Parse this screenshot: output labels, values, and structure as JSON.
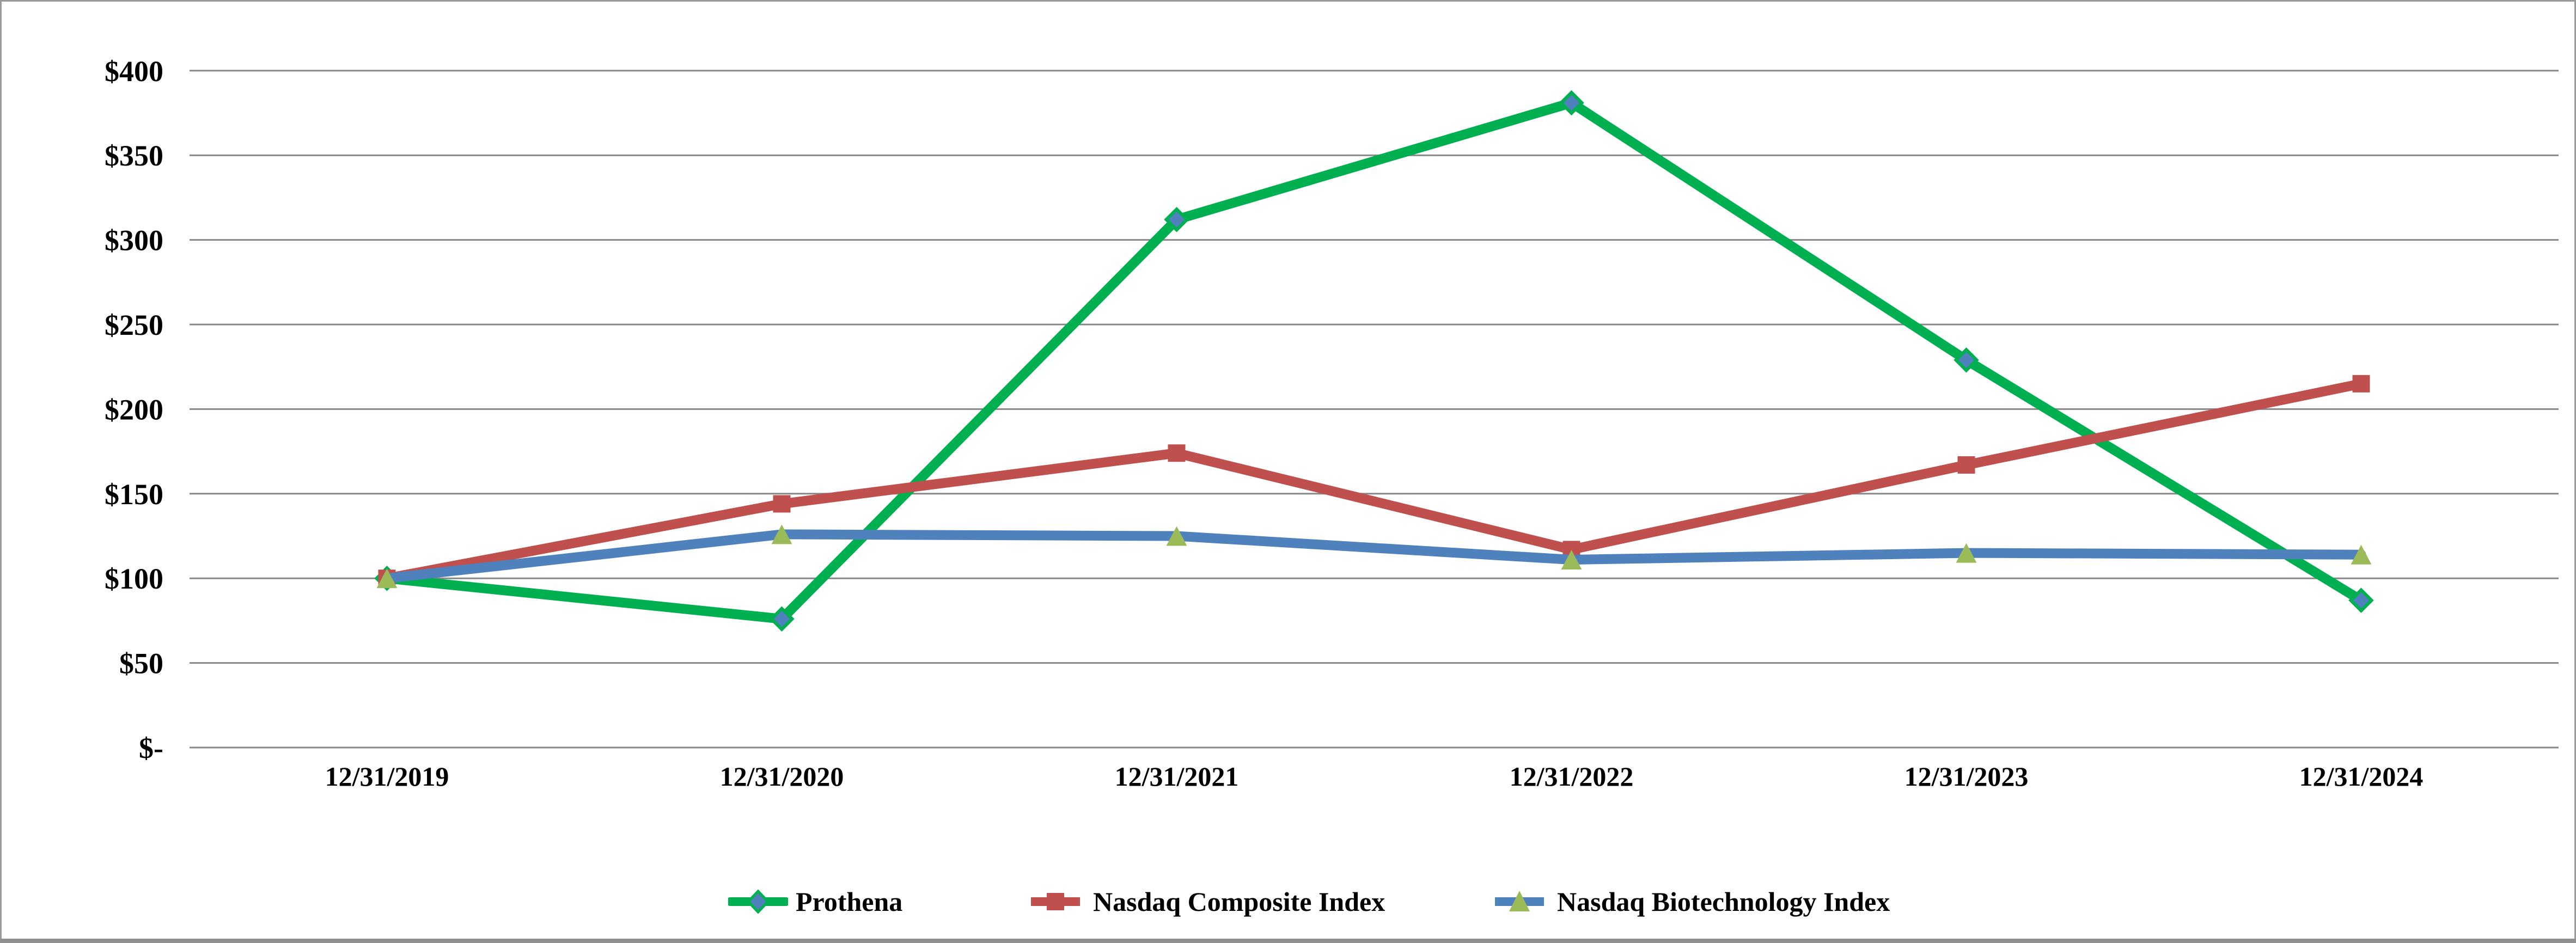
{
  "frame": {
    "background": "#ffffff",
    "border_color": "#9a9a9a",
    "bottom_bar_color": "#8f8f8f",
    "gridline_color": "#878787"
  },
  "chart_data": {
    "type": "line",
    "title": "",
    "xlabel": "",
    "ylabel": "",
    "categories": [
      "12/31/2019",
      "12/31/2020",
      "12/31/2021",
      "12/31/2022",
      "12/31/2023",
      "12/31/2024"
    ],
    "y_tick_labels": [
      "$-",
      "$50",
      "$100",
      "$150",
      "$200",
      "$250",
      "$300",
      "$350",
      "$400"
    ],
    "y_ticks": [
      0,
      50,
      100,
      150,
      200,
      250,
      300,
      350,
      400
    ],
    "ylim": [
      0,
      400
    ],
    "grid": "horizontal-only",
    "legend_position": "bottom",
    "series": [
      {
        "name": "Prothena",
        "values": [
          100,
          76,
          312,
          381,
          229,
          87
        ],
        "line_color": "#00B050",
        "marker": "diamond",
        "marker_fill": "#4F81BD",
        "marker_stroke": "#00B050"
      },
      {
        "name": "Nasdaq Composite Index",
        "values": [
          100,
          144,
          174,
          117,
          167,
          215
        ],
        "line_color": "#C0504D",
        "marker": "square",
        "marker_fill": "#C0504D",
        "marker_stroke": "#C0504D"
      },
      {
        "name": "Nasdaq Biotechnology Index",
        "values": [
          100,
          126,
          125,
          111,
          115,
          114
        ],
        "line_color": "#4F81BD",
        "marker": "triangle",
        "marker_fill": "#9BBB59",
        "marker_stroke": "#9BBB59"
      }
    ]
  }
}
